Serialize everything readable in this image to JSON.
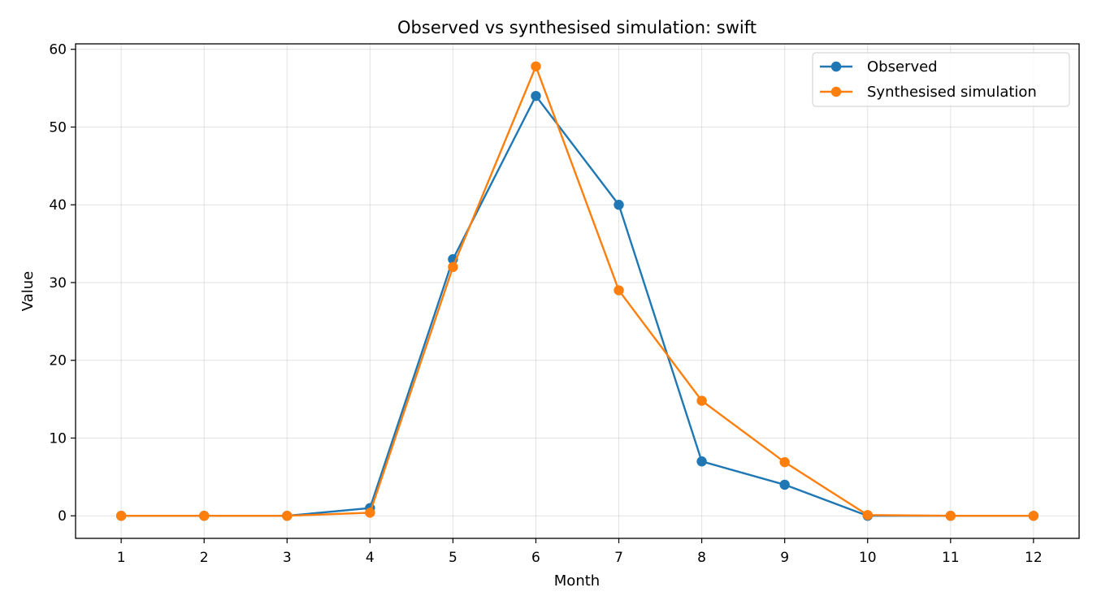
{
  "chart_data": {
    "type": "line",
    "title": "Observed vs synthesised simulation: swift",
    "xlabel": "Month",
    "ylabel": "Value",
    "x": [
      1,
      2,
      3,
      4,
      5,
      6,
      7,
      8,
      9,
      10,
      11,
      12
    ],
    "xlim": [
      0.45,
      12.55
    ],
    "ylim": [
      -2.9,
      60.7
    ],
    "yticks": [
      0,
      10,
      20,
      30,
      40,
      50,
      60
    ],
    "grid": true,
    "legend_position": "top-right",
    "series": [
      {
        "name": "Observed",
        "color": "#1f77b4",
        "values": [
          0,
          0,
          0,
          1,
          33,
          54,
          40,
          7,
          4,
          0,
          0,
          0
        ]
      },
      {
        "name": "Synthesised simulation",
        "color": "#ff7f0e",
        "values": [
          0,
          0,
          0,
          0.4,
          32,
          57.8,
          29,
          14.8,
          6.9,
          0.1,
          0,
          0
        ]
      }
    ]
  }
}
